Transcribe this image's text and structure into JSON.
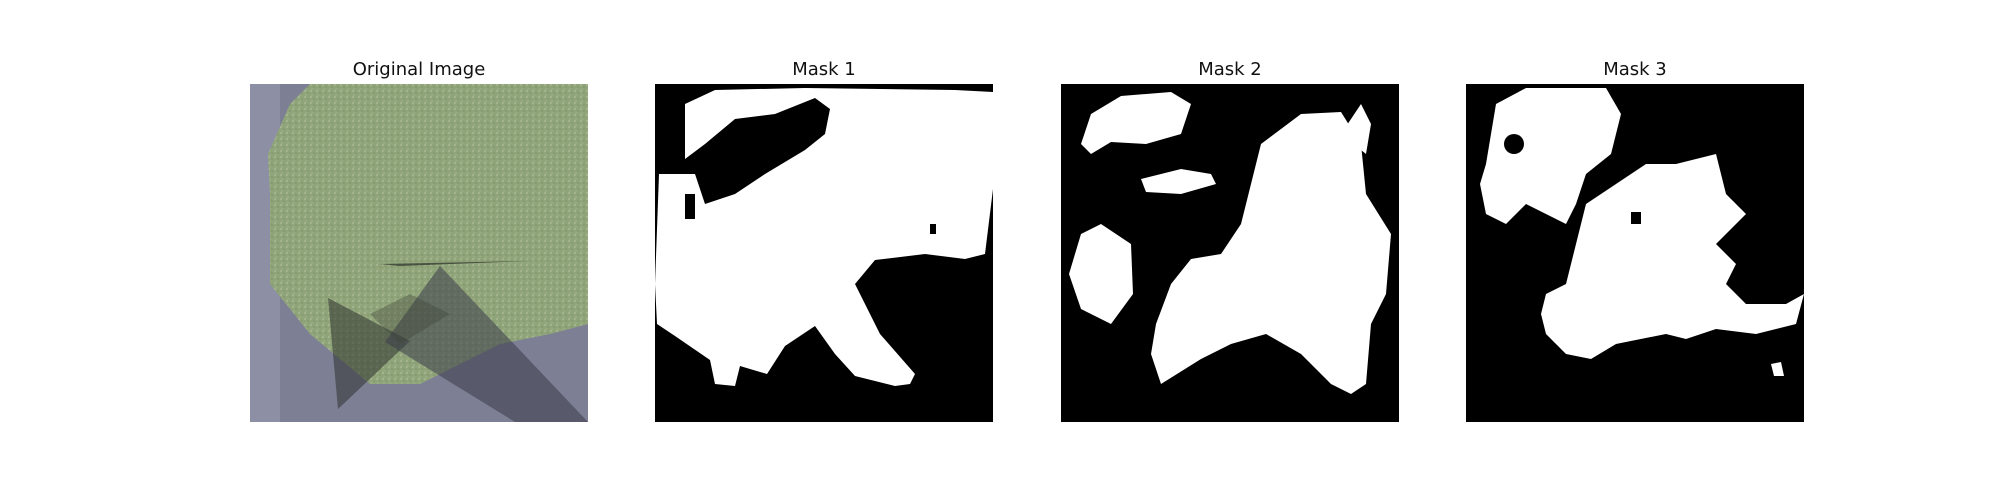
{
  "figure": {
    "panels": [
      {
        "title": "Original Image"
      },
      {
        "title": "Mask 1"
      },
      {
        "title": "Mask 2"
      },
      {
        "title": "Mask 3"
      }
    ]
  },
  "colors": {
    "background": "#ffffff",
    "mask_foreground": "#ffffff",
    "mask_background": "#000000",
    "leaf_green": "#8fa37a",
    "surface_gray": "#7c7f93"
  }
}
